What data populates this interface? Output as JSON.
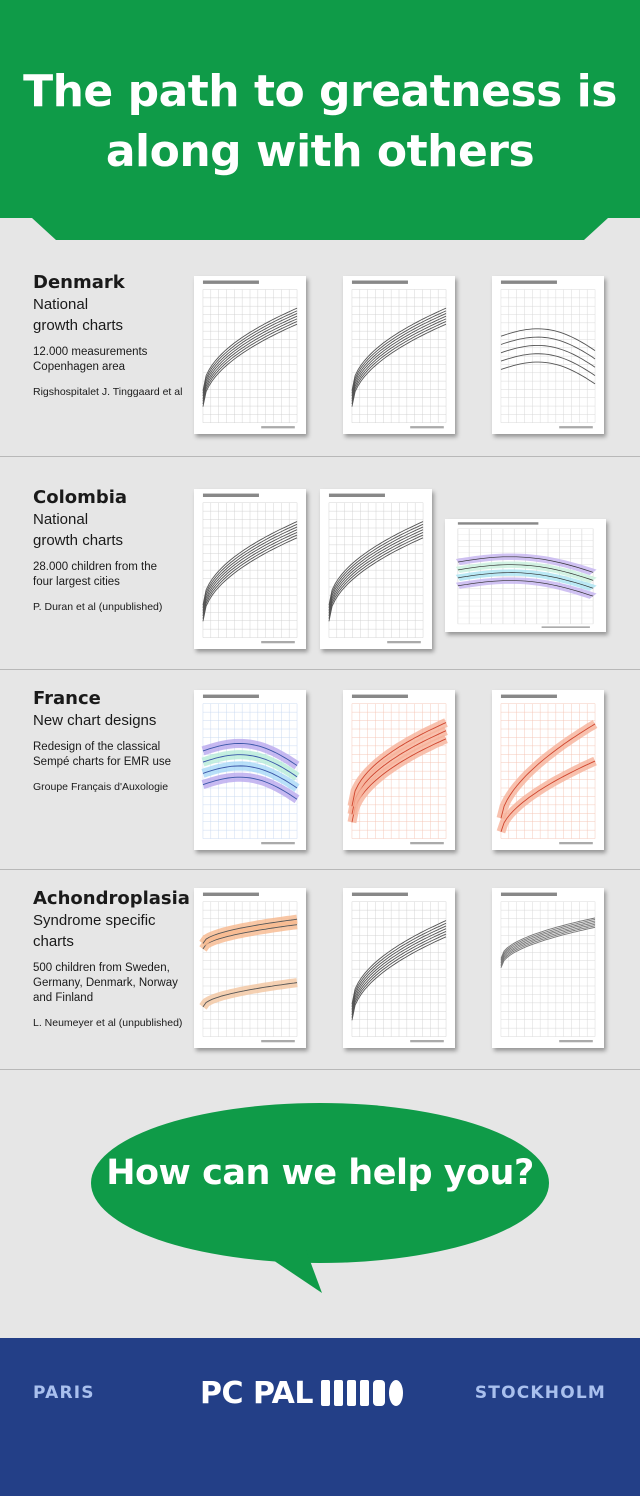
{
  "header": {
    "title": "The path to greatness is along with others",
    "bg_color": "#0f9b48"
  },
  "sections": [
    {
      "title": "Denmark",
      "subtitle": "National\ngrowth charts",
      "description": "12.000 measurements\nCopenhagen area",
      "credit": "Rigshospitalet J. Tinggaard et al"
    },
    {
      "title": "Colombia",
      "subtitle": "National\ngrowth charts",
      "description": "28.000 children from the\nfour largest cities",
      "credit": "P. Duran et al (unpublished)"
    },
    {
      "title": "France",
      "subtitle": "New chart designs",
      "description": "Redesign of the classical\nSempé charts for EMR use",
      "credit": "Groupe Français d'Auxologie"
    },
    {
      "title": "Achondroplasia",
      "subtitle": "Syndrome specific\ncharts",
      "description": "500 children from Sweden,\nGermany, Denmark, Norway\nand Finland",
      "credit": "L. Neumeyer et al (unpublished)"
    }
  ],
  "cta": {
    "text": "How can we help you?",
    "bg_color": "#0f9b48"
  },
  "footer": {
    "left_city": "PARIS",
    "right_city": "STOCKHOLM",
    "logo_text": "PC PAL",
    "bg_color": "#233f87"
  }
}
